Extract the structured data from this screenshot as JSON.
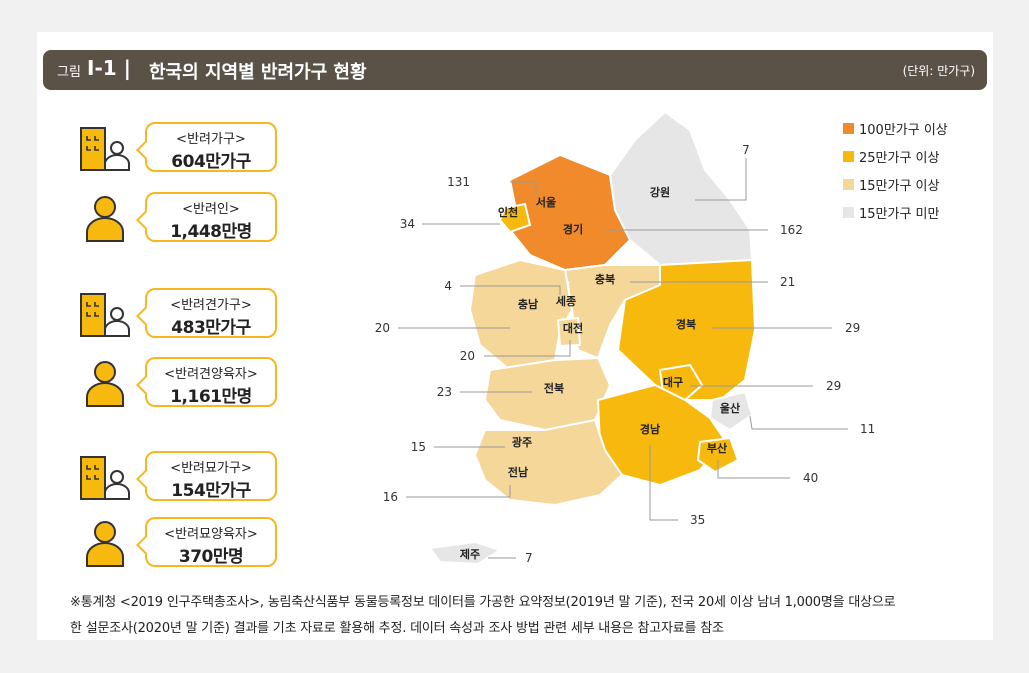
{
  "header": {
    "prefix": "그림",
    "number": "Ⅰ-1 |",
    "title": "한국의 지역별  반려가구 현황",
    "unit": "(단위: 만가구)"
  },
  "stats": [
    {
      "label": "<반려가구>",
      "value": "604만가구",
      "icon": "building-person-icon"
    },
    {
      "label": "<반려인>",
      "value": "1,448만명",
      "icon": "person-icon"
    },
    {
      "label": "<반려견가구>",
      "value": "483만가구",
      "icon": "building-person-icon"
    },
    {
      "label": "<반려견양육자>",
      "value": "1,161만명",
      "icon": "person-icon"
    },
    {
      "label": "<반려묘가구>",
      "value": "154만가구",
      "icon": "building-person-icon"
    },
    {
      "label": "<반려묘양육자>",
      "value": "370만명",
      "icon": "person-icon"
    }
  ],
  "legend": [
    {
      "label": "100만가구 이상",
      "color": "#f08a2a"
    },
    {
      "label": "25만가구 이상",
      "color": "#f8b90e"
    },
    {
      "label": "15만가구 이상",
      "color": "#f5d79a"
    },
    {
      "label": "15만가구 미만",
      "color": "#e6e6e6"
    }
  ],
  "chart_data": {
    "type": "map",
    "unit": "만가구",
    "regions": [
      {
        "name": "서울",
        "value": 131,
        "class": "100만가구 이상"
      },
      {
        "name": "경기",
        "value": 162,
        "class": "100만가구 이상"
      },
      {
        "name": "인천",
        "value": 34,
        "class": "25만가구 이상"
      },
      {
        "name": "강원",
        "value": 7,
        "class": "15만가구 미만"
      },
      {
        "name": "충북",
        "value": 21,
        "class": "15만가구 이상"
      },
      {
        "name": "세종",
        "value": 4,
        "class": "15만가구 미만"
      },
      {
        "name": "충남",
        "value": 20,
        "class": "15만가구 이상"
      },
      {
        "name": "대전",
        "value": 20,
        "class": "15만가구 이상"
      },
      {
        "name": "경북",
        "value": 29,
        "class": "25만가구 이상"
      },
      {
        "name": "대구",
        "value": 29,
        "class": "25만가구 이상"
      },
      {
        "name": "전북",
        "value": 23,
        "class": "15만가구 이상"
      },
      {
        "name": "울산",
        "value": 11,
        "class": "15만가구 미만"
      },
      {
        "name": "광주",
        "value": 15,
        "class": "15만가구 이상"
      },
      {
        "name": "경남",
        "value": 35,
        "class": "25만가구 이상"
      },
      {
        "name": "부산",
        "value": 40,
        "class": "25만가구 이상"
      },
      {
        "name": "전남",
        "value": 16,
        "class": "15만가구 이상"
      },
      {
        "name": "제주",
        "value": 7,
        "class": "15만가구 미만"
      }
    ]
  },
  "footnote": {
    "line1": "※통계청 <2019 인구주택총조사>, 농림축산식품부 동물등록정보 데이터를 가공한 요약정보(2019년 말 기준), 전국 20세 이상 남녀 1,000명을 대상으로",
    "line2": "한 설문조사(2020년 말 기준) 결과를 기초 자료로 활용해 추정. 데이터 속성과 조사 방법 관련 세부 내용은 참고자료를 참조"
  }
}
